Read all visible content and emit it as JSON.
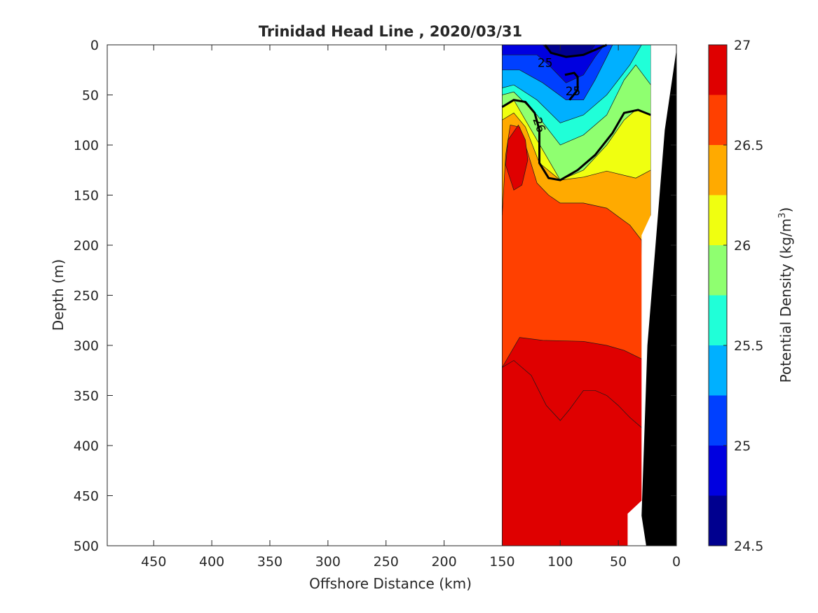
{
  "chart_data": {
    "type": "contour",
    "title": "Trinidad Head Line , 2020/03/31",
    "xlabel": "Offshore Distance (km)",
    "ylabel": "Depth (m)",
    "xlim": [
      490,
      0
    ],
    "ylim": [
      0,
      500
    ],
    "x_direction": "reversed",
    "y_direction": "reversed (depth increases downward)",
    "xticks": [
      450,
      400,
      350,
      300,
      250,
      200,
      150,
      100,
      50,
      0
    ],
    "yticks": [
      0,
      50,
      100,
      150,
      200,
      250,
      300,
      350,
      400,
      450,
      500
    ],
    "data_extent_km": [
      150,
      22
    ],
    "colorbar": {
      "label": "Potential Density (kg/m",
      "label_superscript": "3",
      "label_suffix": ")",
      "range": [
        24.5,
        27
      ],
      "levels": [
        24.5,
        24.75,
        25,
        25.25,
        25.5,
        25.75,
        26,
        26.25,
        26.5,
        26.75,
        27
      ],
      "tick_labels": [
        "24.5",
        "25",
        "25.5",
        "26",
        "26.5",
        "27"
      ],
      "colors": [
        "#00008f",
        "#0000e0",
        "#0040ff",
        "#00b0ff",
        "#20ffd8",
        "#8fff70",
        "#f0ff10",
        "#ffaa00",
        "#ff4000",
        "#df0000"
      ]
    },
    "contour_labels": [
      {
        "text": "25",
        "x_km": 113,
        "depth_m": 18
      },
      {
        "text": "25",
        "x_km": 89,
        "depth_m": 46
      },
      {
        "text": "26",
        "x_km": 118,
        "depth_m": 80
      }
    ],
    "bathymetry": {
      "color": "#000000",
      "description": "seafloor near shore"
    },
    "fields": {
      "background": 26.85,
      "upper_orange": 26.6,
      "mid_orange": 26.4,
      "yellow": 26.15,
      "green": 25.9,
      "cyan": 25.65,
      "light_blue": 25.4,
      "mid_blue": 25.15,
      "blue": 24.9,
      "dark_blue": 24.65,
      "deep_red": 26.85,
      "red_finger": 26.85
    }
  }
}
